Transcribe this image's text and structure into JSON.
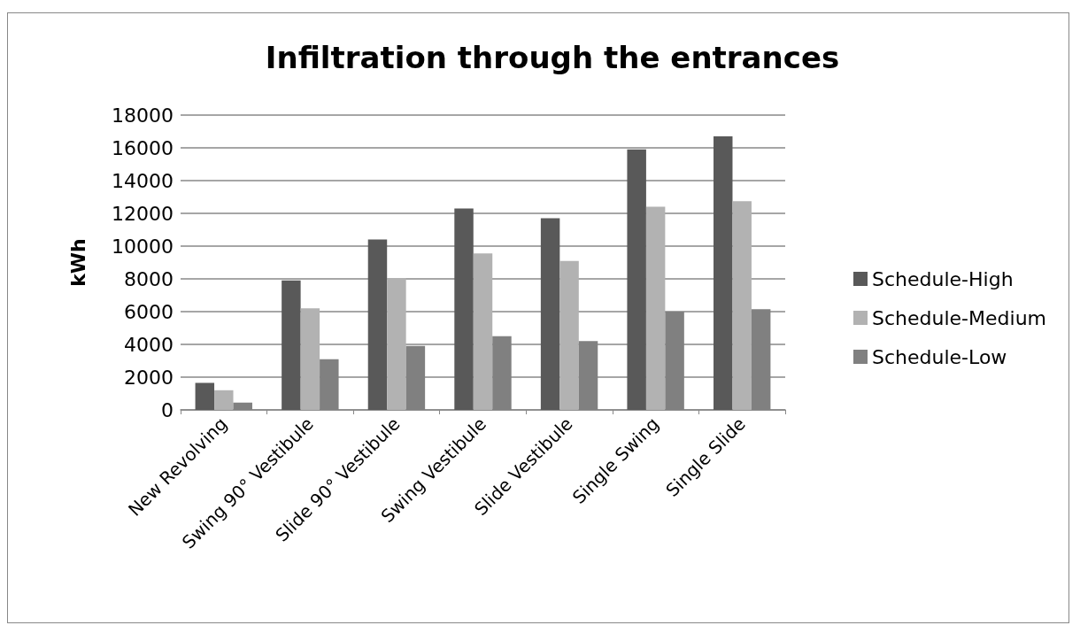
{
  "chart_data": {
    "type": "bar",
    "title": "Infiltration through the entrances",
    "ylabel": "kWh",
    "categories": [
      "New Revolving",
      "Swing 90° Vestibule",
      "Slide 90° Vestibule",
      "Swing Vestibule",
      "Slide Vestibule",
      "Single Swing",
      "Single Slide"
    ],
    "series": [
      {
        "name": "Schedule-High",
        "color": "#595959",
        "values": [
          1650,
          7900,
          10400,
          12300,
          11700,
          15900,
          16700
        ]
      },
      {
        "name": "Schedule-Medium",
        "color": "#b2b2b2",
        "values": [
          1200,
          6200,
          8050,
          9550,
          9100,
          12400,
          12750
        ]
      },
      {
        "name": "Schedule-Low",
        "color": "#808080",
        "values": [
          450,
          3100,
          3900,
          4500,
          4200,
          6000,
          6150
        ]
      }
    ],
    "ylim": [
      0,
      18000
    ],
    "yticks": [
      0,
      2000,
      4000,
      6000,
      8000,
      10000,
      12000,
      14000,
      16000,
      18000
    ],
    "grid": "y",
    "legend": "right"
  }
}
